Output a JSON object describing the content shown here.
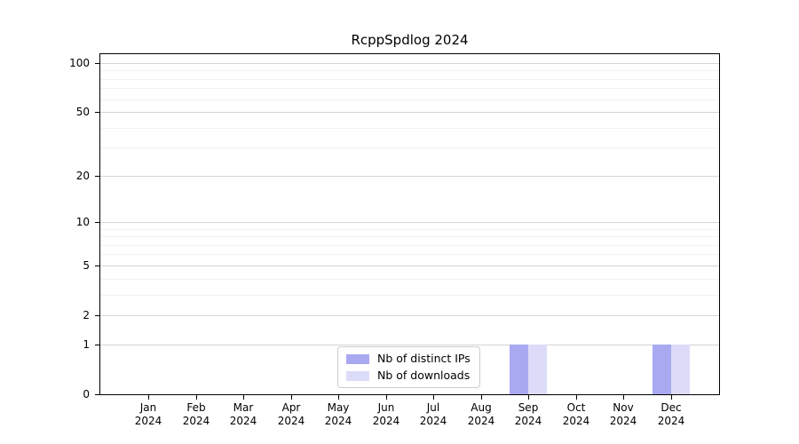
{
  "chart_data": {
    "type": "bar",
    "title": "RcppSpdlog 2024",
    "yscale": "log1p",
    "ymax": 113,
    "grid": true,
    "legend_position": "lower center",
    "categories": [
      "Jan",
      "Feb",
      "Mar",
      "Apr",
      "May",
      "Jun",
      "Jul",
      "Aug",
      "Sep",
      "Oct",
      "Nov",
      "Dec"
    ],
    "category_sublabel": "2024",
    "yticks": [
      0,
      1,
      2,
      5,
      10,
      20,
      50,
      100
    ],
    "minor_yticks": [
      3,
      4,
      6,
      7,
      8,
      9,
      30,
      40,
      60,
      70,
      80,
      90
    ],
    "series": [
      {
        "name": "Nb of distinct IPs",
        "color": "#a9a9f2",
        "values": [
          0,
          0,
          0,
          0,
          0,
          0,
          0,
          0,
          1,
          0,
          0,
          1
        ]
      },
      {
        "name": "Nb of downloads",
        "color": "#dcdcf8",
        "values": [
          0,
          0,
          0,
          0,
          0,
          0,
          0,
          0,
          1,
          0,
          0,
          1
        ]
      }
    ],
    "colors": {
      "major_grid": "#d5d5d5",
      "minor_grid": "#f1f1f1",
      "axis": "#000000",
      "legend_border": "#cccccc"
    }
  }
}
